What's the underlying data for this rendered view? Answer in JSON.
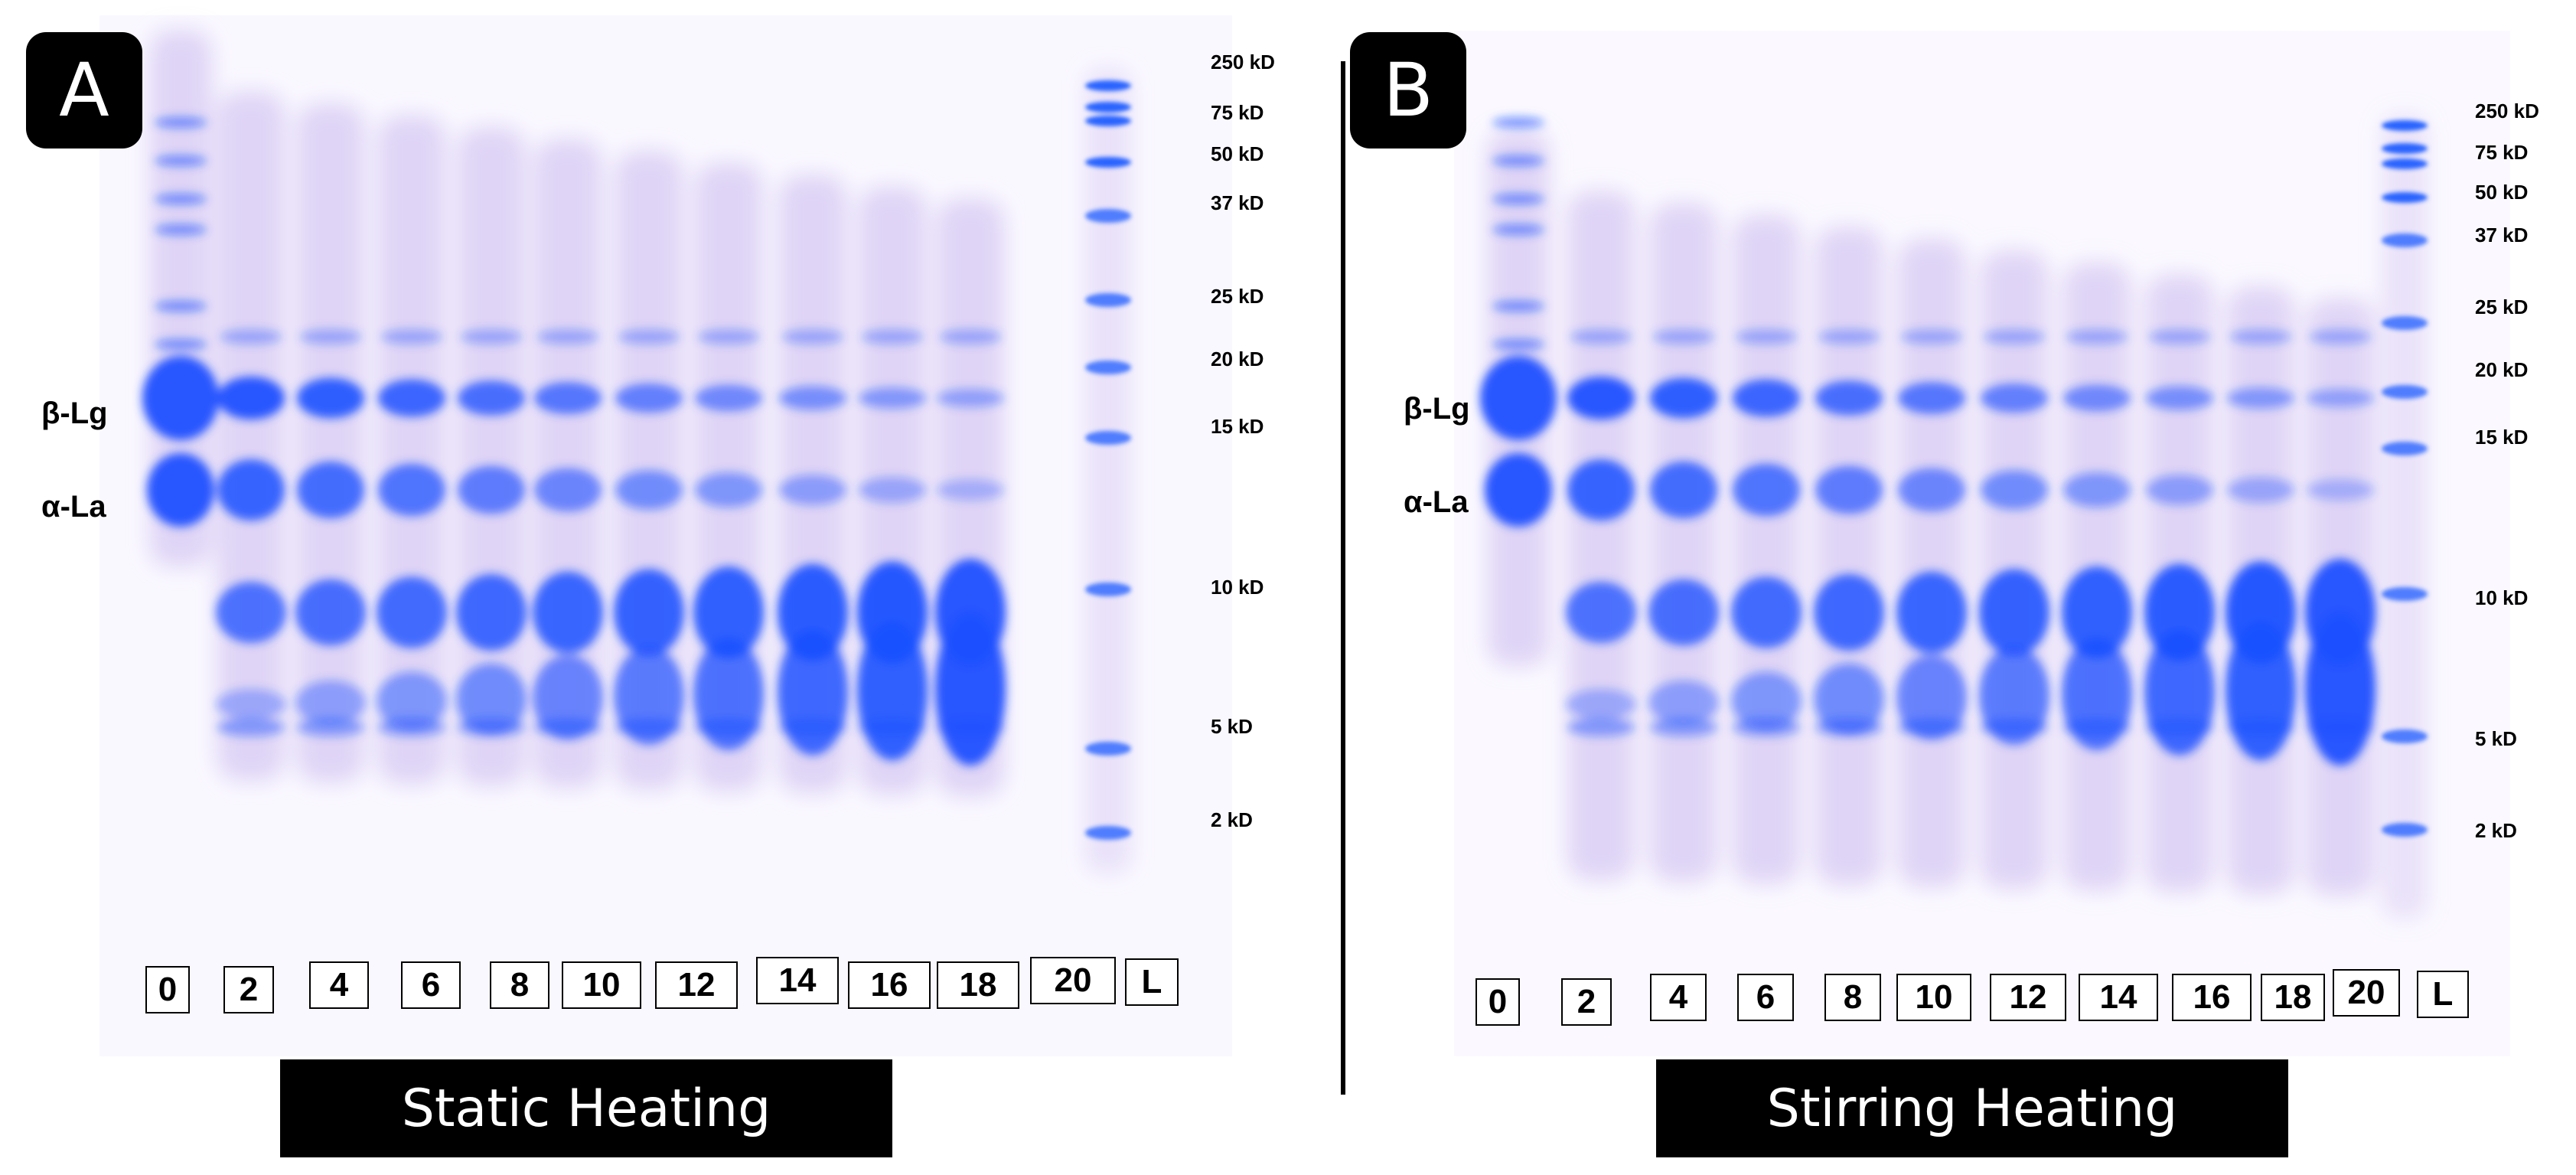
{
  "panels": [
    {
      "letter": "A",
      "protein_labels": {
        "beta_lg": "β-Lg",
        "alpha_la": "α-La"
      },
      "mw_markers": [
        "250 kD",
        "75 kD",
        "50 kD",
        "37 kD",
        "25 kD",
        "20 kD",
        "15 kD",
        "10 kD",
        "5 kD",
        "2 kD"
      ],
      "lanes": [
        "0",
        "2",
        "4",
        "6",
        "8",
        "10",
        "12",
        "14",
        "16",
        "18",
        "20",
        "L"
      ],
      "caption": "Static Heating"
    },
    {
      "letter": "B",
      "protein_labels": {
        "beta_lg": "β-Lg",
        "alpha_la": "α-La"
      },
      "mw_markers": [
        "250 kD",
        "75 kD",
        "50 kD",
        "37 kD",
        "25 kD",
        "20 kD",
        "15 kD",
        "10 kD",
        "5 kD",
        "2 kD"
      ],
      "lanes": [
        "0",
        "2",
        "4",
        "6",
        "8",
        "10",
        "12",
        "14",
        "16",
        "18",
        "20",
        "L"
      ],
      "caption": "Stirring Heating"
    }
  ],
  "colors": {
    "band": "#1a4fff",
    "stain": "#c9b7ef",
    "ladder": "#1a5cff"
  }
}
